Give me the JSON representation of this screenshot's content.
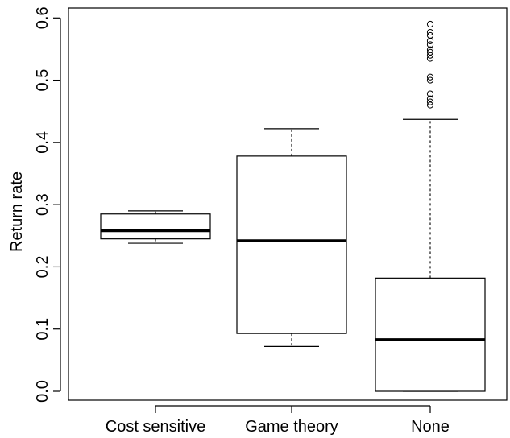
{
  "chart_data": {
    "type": "boxplot",
    "title": "",
    "xlabel": "",
    "ylabel": "Return rate",
    "ylim": [
      0.0,
      0.6
    ],
    "yticks": [
      "0.0",
      "0.1",
      "0.2",
      "0.3",
      "0.4",
      "0.5",
      "0.6"
    ],
    "grid": false,
    "categories": [
      "Cost sensitive",
      "Game theory",
      "None"
    ],
    "boxes": [
      {
        "category": "Cost sensitive",
        "whisker_low": 0.238,
        "q1": 0.245,
        "median": 0.258,
        "q3": 0.285,
        "whisker_high": 0.29,
        "outliers": []
      },
      {
        "category": "Game theory",
        "whisker_low": 0.072,
        "q1": 0.093,
        "median": 0.242,
        "q3": 0.378,
        "whisker_high": 0.422,
        "outliers": []
      },
      {
        "category": "None",
        "whisker_low": 0.0,
        "q1": 0.0,
        "median": 0.083,
        "q3": 0.182,
        "whisker_high": 0.437,
        "outliers": [
          0.59,
          0.577,
          0.572,
          0.563,
          0.557,
          0.549,
          0.545,
          0.54,
          0.535,
          0.505,
          0.5,
          0.478,
          0.47,
          0.465,
          0.46
        ]
      }
    ]
  }
}
